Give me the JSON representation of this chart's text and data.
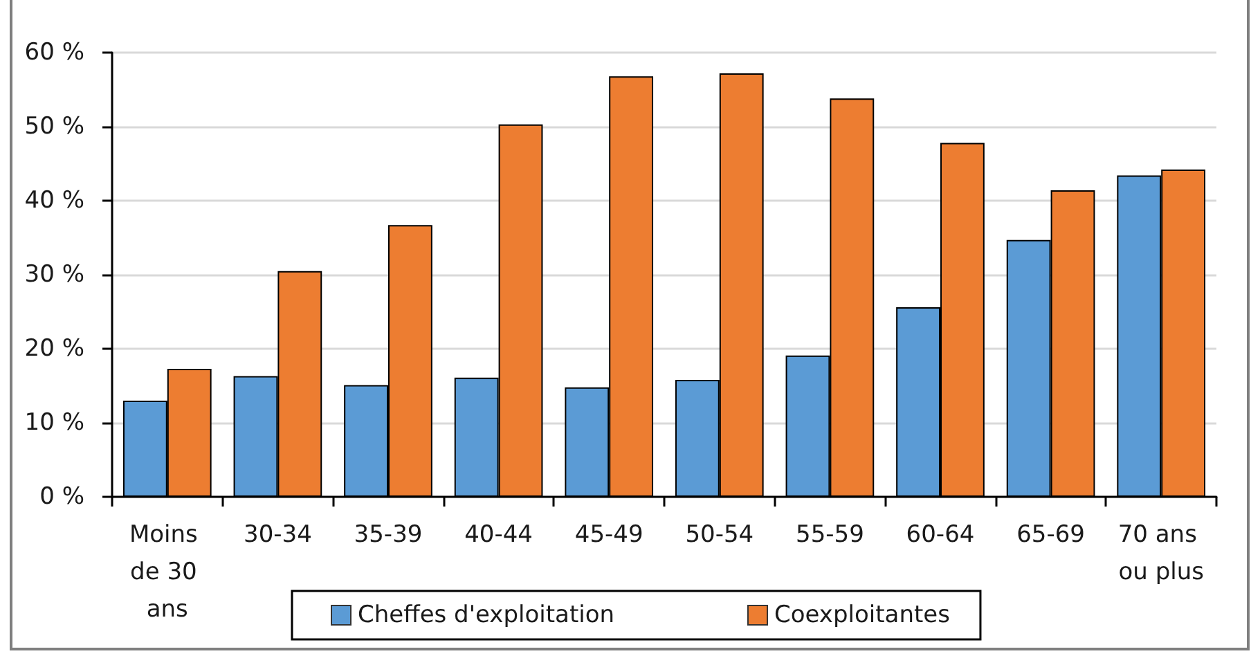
{
  "chart_data": {
    "type": "bar",
    "categories": [
      "Moins de 30 ans",
      "30-34",
      "35-39",
      "40-44",
      "45-49",
      "50-54",
      "55-59",
      "60-64",
      "65-69",
      "70 ans ou plus"
    ],
    "series": [
      {
        "name": "Cheffes d'exploitation",
        "color": "#5b9bd5",
        "values": [
          13.0,
          16.3,
          15.1,
          16.1,
          14.8,
          15.8,
          19.1,
          25.6,
          34.7,
          43.4
        ]
      },
      {
        "name": "Coexploitantes",
        "color": "#ed7d31",
        "values": [
          17.3,
          30.5,
          36.7,
          50.3,
          56.8,
          57.2,
          53.8,
          47.8,
          41.4,
          44.2
        ]
      }
    ],
    "ylim": [
      0,
      60
    ],
    "yticks": [
      {
        "value": 0,
        "label": "0 %"
      },
      {
        "value": 10,
        "label": "10 %"
      },
      {
        "value": 20,
        "label": "20 %"
      },
      {
        "value": 30,
        "label": "30 %"
      },
      {
        "value": 40,
        "label": "40 %"
      },
      {
        "value": 50,
        "label": "50 %"
      },
      {
        "value": 60,
        "label": "60 %"
      }
    ],
    "grid": "y",
    "legend": "bottom"
  }
}
